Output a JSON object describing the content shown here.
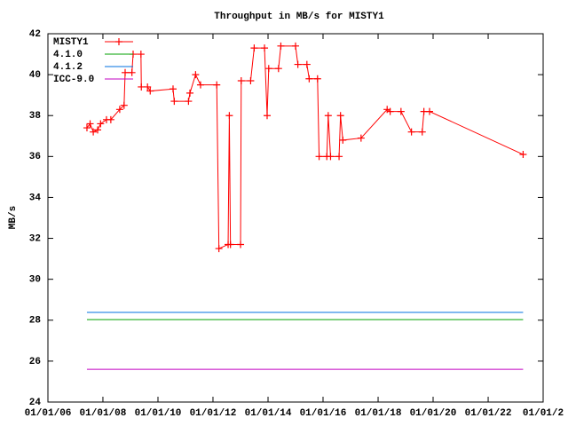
{
  "chart_data": {
    "type": "line",
    "title": "Throughput in MB/s for MISTY1",
    "y_label": "MB/s",
    "xlim": [
      "2006-01-01",
      "2024-01-01"
    ],
    "xticks": [
      {
        "value": "2006-01-01",
        "label": "01/01/06"
      },
      {
        "value": "2008-01-01",
        "label": "01/01/08"
      },
      {
        "value": "2010-01-01",
        "label": "01/01/10"
      },
      {
        "value": "2012-01-01",
        "label": "01/01/12"
      },
      {
        "value": "2014-01-01",
        "label": "01/01/14"
      },
      {
        "value": "2016-01-01",
        "label": "01/01/16"
      },
      {
        "value": "2018-01-01",
        "label": "01/01/18"
      },
      {
        "value": "2020-01-01",
        "label": "01/01/20"
      },
      {
        "value": "2022-01-01",
        "label": "01/01/22"
      },
      {
        "value": "2024-01-01",
        "label": "01/01/2"
      }
    ],
    "ylim": [
      24,
      42
    ],
    "yticks": [
      24,
      26,
      28,
      30,
      32,
      34,
      36,
      38,
      40,
      42
    ],
    "legend": "top-left",
    "series": [
      {
        "name": "MISTY1",
        "color": "#ff0000",
        "marker": "plus",
        "x": [
          "2007-06-03",
          "2007-07-15",
          "2007-08-26",
          "2007-10-23",
          "2007-12-01",
          "2008-02-17",
          "2008-04-15",
          "2008-08-11",
          "2008-10-08",
          "2008-10-22",
          "2009-01-20",
          "2009-02-05",
          "2009-05-20",
          "2009-05-25",
          "2009-08-15",
          "2009-09-20",
          "2010-07-20",
          "2010-08-05",
          "2011-02-10",
          "2011-03-01",
          "2011-05-15",
          "2011-07-20",
          "2012-02-20",
          "2012-03-20",
          "2012-07-20",
          "2012-08-05",
          "2012-08-20",
          "2013-01-01",
          "2013-01-10",
          "2013-05-15",
          "2013-07-01",
          "2013-11-15",
          "2013-12-20",
          "2014-01-10",
          "2014-05-20",
          "2014-06-20",
          "2015-01-01",
          "2015-02-01",
          "2015-06-01",
          "2015-07-01",
          "2015-10-20",
          "2015-11-10",
          "2016-02-20",
          "2016-03-10",
          "2016-04-10",
          "2016-08-01",
          "2016-08-20",
          "2016-09-20",
          "2017-05-20",
          "2018-05-01",
          "2018-06-10",
          "2018-11-01",
          "2019-03-20",
          "2019-08-10",
          "2019-09-01",
          "2019-11-15",
          "2023-04-10"
        ],
        "values": [
          37.4,
          37.6,
          37.2,
          37.3,
          37.6,
          37.8,
          37.8,
          38.3,
          38.5,
          40.1,
          40.1,
          41.0,
          41.0,
          39.4,
          39.4,
          39.2,
          39.3,
          38.7,
          38.7,
          39.1,
          40.0,
          39.5,
          39.5,
          31.5,
          31.7,
          38.0,
          31.7,
          31.7,
          39.7,
          39.7,
          41.3,
          41.3,
          38.0,
          40.3,
          40.3,
          41.4,
          41.4,
          40.5,
          40.5,
          39.8,
          39.8,
          36.0,
          36.0,
          38.0,
          36.0,
          36.0,
          38.0,
          36.8,
          36.9,
          38.3,
          38.2,
          38.2,
          37.2,
          37.2,
          38.2,
          38.2,
          36.1
        ]
      },
      {
        "name": "4.1.0",
        "color": "#00a000",
        "x": [
          "2007-06-03",
          "2023-04-10"
        ],
        "values": [
          28.03,
          28.03
        ]
      },
      {
        "name": "4.1.2",
        "color": "#0070e0",
        "x": [
          "2007-06-03",
          "2023-04-10"
        ],
        "values": [
          28.38,
          28.38
        ]
      },
      {
        "name": "ICC-9.0",
        "color": "#c000c0",
        "x": [
          "2007-06-03",
          "2023-04-10"
        ],
        "values": [
          25.6,
          25.6
        ]
      }
    ]
  }
}
